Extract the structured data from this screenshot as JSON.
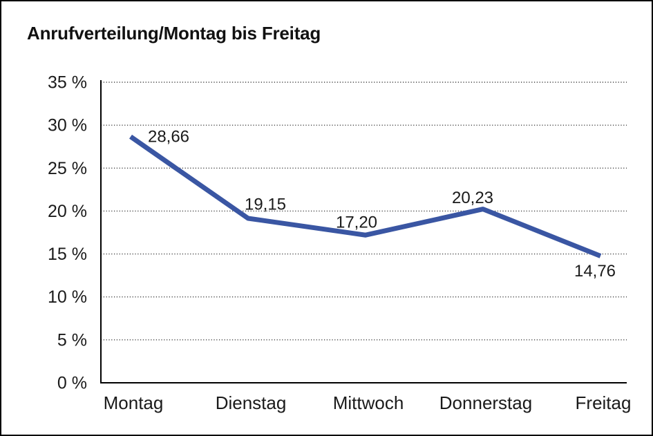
{
  "window": {
    "background_color": "#ffffff",
    "border_color": "#000000"
  },
  "chart_data": {
    "type": "line",
    "title": "Anrufverteilung/Montag bis Freitag",
    "categories": [
      "Montag",
      "Dienstag",
      "Mittwoch",
      "Donnerstag",
      "Freitag"
    ],
    "series": [
      {
        "name": "Anrufverteilung",
        "values": [
          28.66,
          19.15,
          17.2,
          20.23,
          14.76
        ]
      }
    ],
    "point_labels": [
      "28,66",
      "19,15",
      "17,20",
      "20,23",
      "14,76"
    ],
    "y_ticks": [
      {
        "value": 35,
        "label": "35 %"
      },
      {
        "value": 30,
        "label": "30 %"
      },
      {
        "value": 25,
        "label": "25 %"
      },
      {
        "value": 20,
        "label": "20 %"
      },
      {
        "value": 15,
        "label": "15 %"
      },
      {
        "value": 10,
        "label": "10 %"
      },
      {
        "value": 5,
        "label": "5 %"
      },
      {
        "value": 0,
        "label": "0 %"
      }
    ],
    "ylim": [
      0,
      35
    ],
    "xlabel": "",
    "ylabel": "",
    "grid": "horizontal-dotted",
    "legend": "none",
    "line_color": "#3A56A3",
    "grid_color": "#3c3c3c",
    "axis_color": "#000000",
    "text_color": "#1a1a1a"
  }
}
